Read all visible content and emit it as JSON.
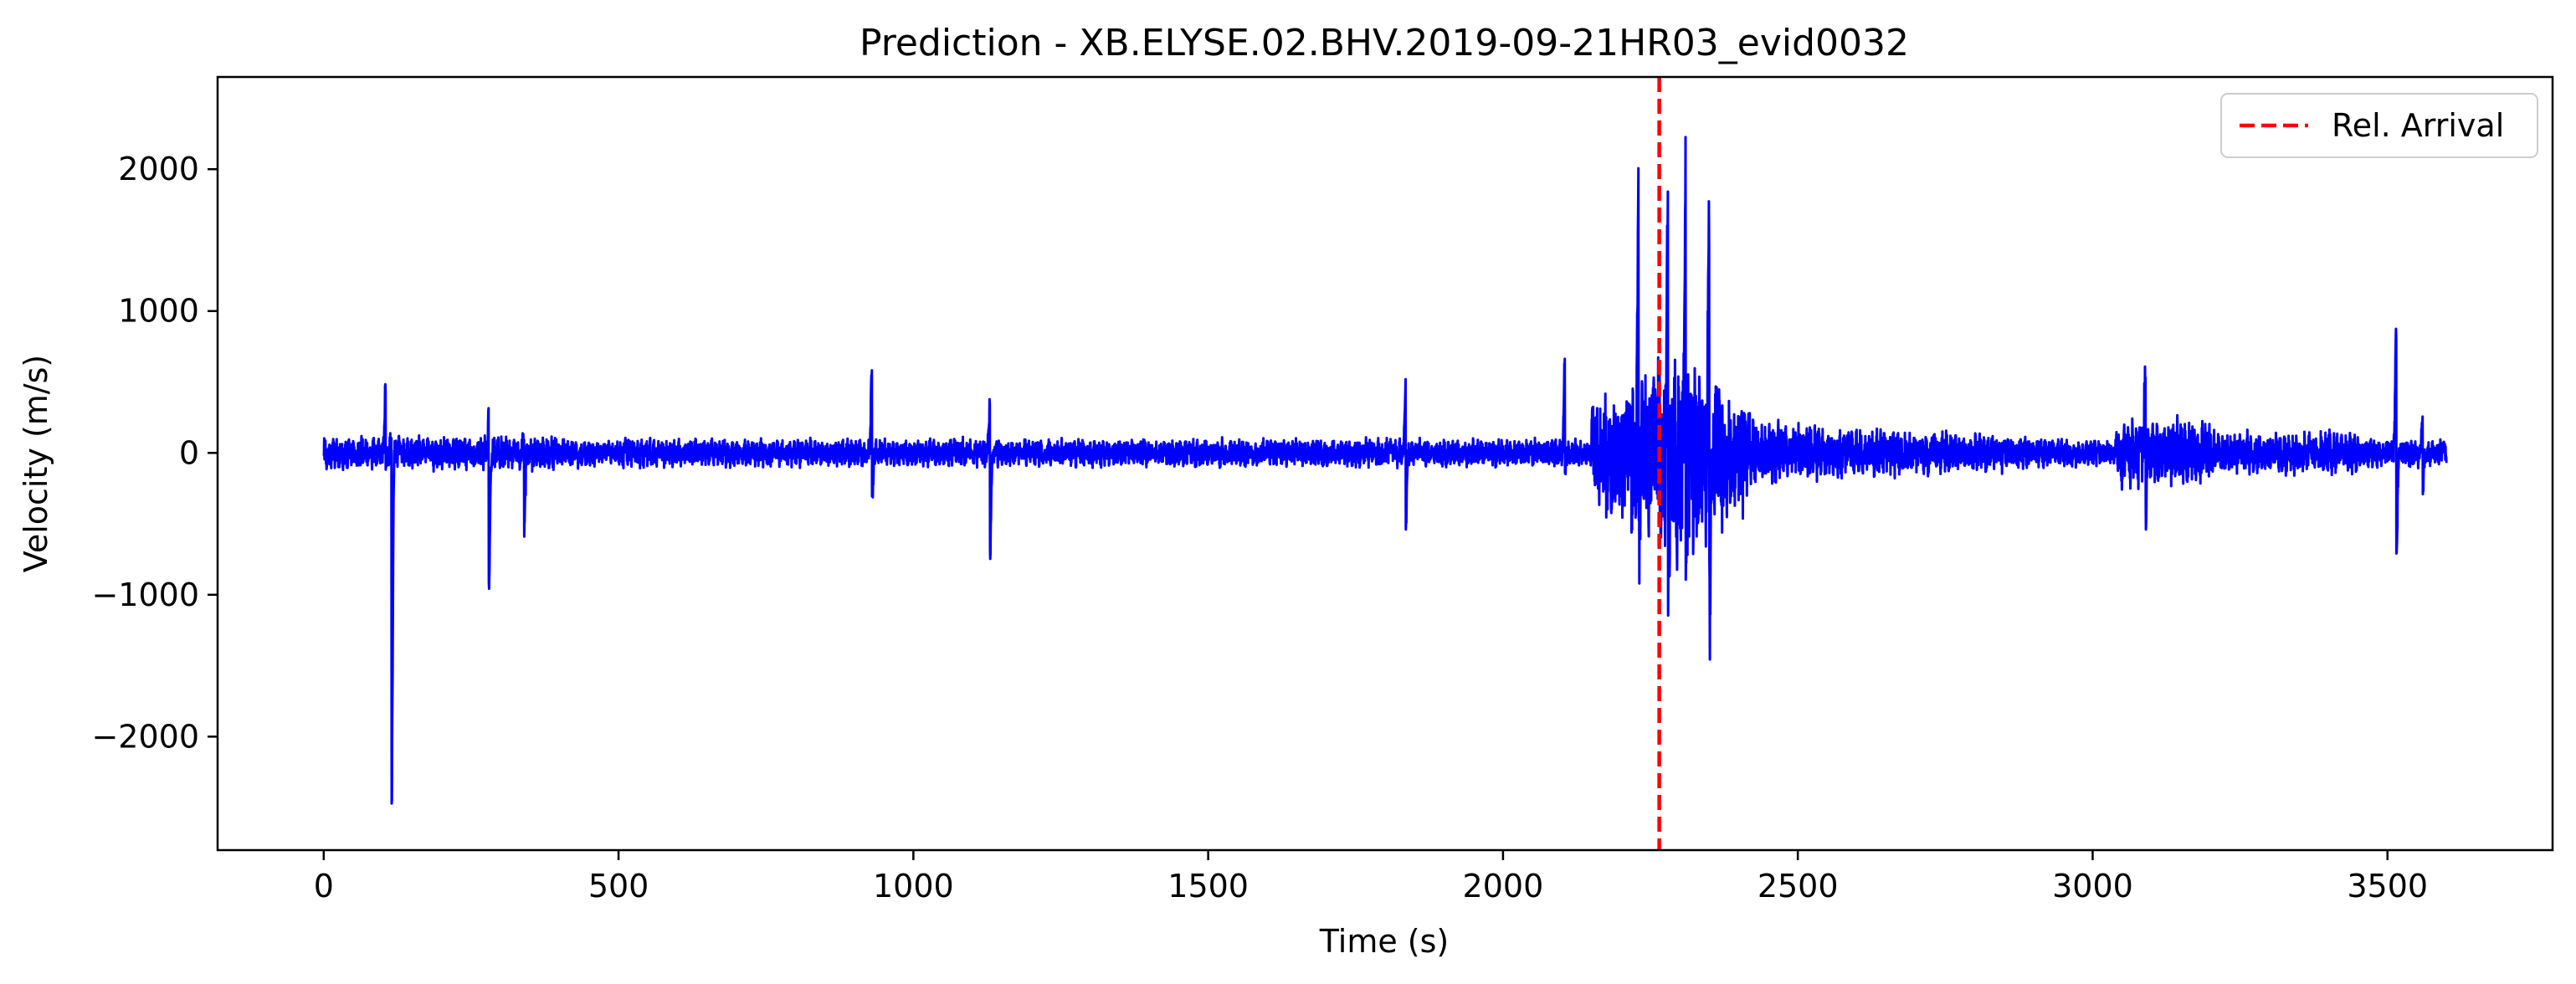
{
  "chart_data": {
    "type": "line",
    "title": "Prediction - XB.ELYSE.02.BHV.2019-09-21HR03_evid0032",
    "xlabel": "Time (s)",
    "ylabel": "Velocity (m/s)",
    "xlim": [
      -180,
      3780
    ],
    "ylim": [
      -2800,
      2650
    ],
    "xticks": [
      0,
      500,
      1000,
      1500,
      2000,
      2500,
      3000,
      3500
    ],
    "xtick_labels": [
      "0",
      "500",
      "1000",
      "1500",
      "2000",
      "2500",
      "3000",
      "3500"
    ],
    "yticks": [
      -2000,
      -1000,
      0,
      1000,
      2000
    ],
    "ytick_labels": [
      "−2000",
      "−1000",
      "0",
      "1000",
      "2000"
    ],
    "grid": false,
    "legend": {
      "placement": "top-right",
      "entries": [
        {
          "label": "Rel. Arrival",
          "style": "dashed",
          "color": "#ff0000"
        }
      ]
    },
    "series": [
      {
        "color": "#0000ff",
        "x_range": [
          0,
          3600
        ],
        "baseline_noise": 70,
        "features": [
          {
            "x": 105,
            "peak": 530,
            "trough": -150
          },
          {
            "x": 115,
            "peak": 150,
            "trough": -2530
          },
          {
            "x": 280,
            "peak": 250,
            "trough": -1020
          },
          {
            "x": 340,
            "peak": 200,
            "trough": -550
          },
          {
            "x": 930,
            "peak": 620,
            "trough": -340
          },
          {
            "x": 1130,
            "peak": 390,
            "trough": -710
          },
          {
            "x": 1835,
            "peak": 520,
            "trough": -510
          },
          {
            "x": 2105,
            "peak": 640,
            "trough": -100
          },
          {
            "x": 2230,
            "peak": 1430,
            "trough": -350
          },
          {
            "x": 2280,
            "peak": 1690,
            "trough": -740
          },
          {
            "x": 2310,
            "peak": 2390,
            "trough": -980
          },
          {
            "x": 2350,
            "peak": 1410,
            "trough": -860
          },
          {
            "x": 3090,
            "peak": 640,
            "trough": -380
          },
          {
            "x": 3515,
            "peak": 820,
            "trough": -780
          },
          {
            "x": 3560,
            "peak": 320,
            "trough": -240
          }
        ]
      }
    ],
    "vlines": [
      {
        "x": 2265,
        "color": "#ff0000",
        "style": "dashed",
        "label": "Rel. Arrival"
      }
    ]
  }
}
